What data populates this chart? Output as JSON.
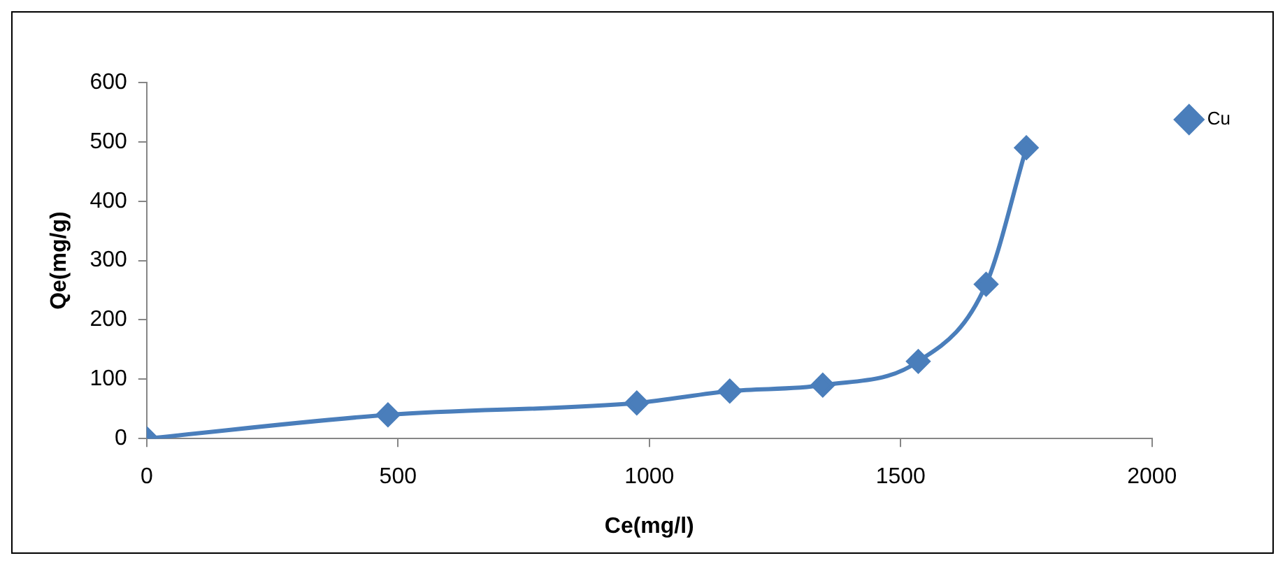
{
  "chart_data": {
    "type": "line",
    "xlabel": "Ce(mg/l)",
    "ylabel": "Qe(mg/g)",
    "x": [
      0,
      480,
      975,
      1160,
      1345,
      1535,
      1670,
      1750
    ],
    "series": [
      {
        "name": "Cu",
        "color": "#4a7ebb",
        "values": [
          0,
          40,
          60,
          80,
          90,
          130,
          260,
          490
        ]
      }
    ],
    "xlim": [
      0,
      2000
    ],
    "xticks": [
      0,
      500,
      1000,
      1500,
      2000
    ],
    "ylim": [
      0,
      600
    ],
    "yticks": [
      0,
      100,
      200,
      300,
      400,
      500,
      600
    ],
    "grid": false,
    "legend": "top right",
    "marker": "diamond",
    "line_style": "solid"
  }
}
